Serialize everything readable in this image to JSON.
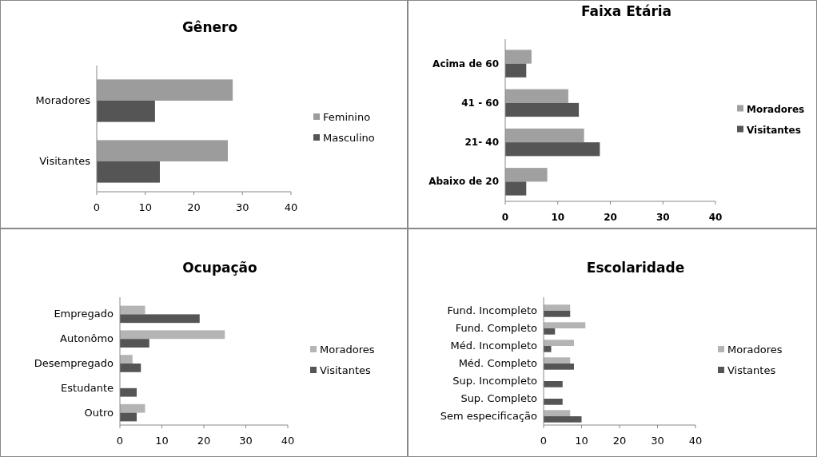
{
  "chart_data": [
    {
      "type": "bar",
      "orientation": "horizontal",
      "title": "Gênero",
      "categories": [
        "Moradores",
        "Visitantes"
      ],
      "series": [
        {
          "name": "Feminino",
          "color": "#9c9c9c",
          "values": [
            28,
            27
          ]
        },
        {
          "name": "Masculino",
          "color": "#555555",
          "values": [
            12,
            13
          ]
        }
      ],
      "xlim": [
        0,
        40
      ],
      "xticks": [
        0,
        10,
        20,
        30,
        40
      ],
      "grid": false,
      "legend": "right"
    },
    {
      "type": "bar",
      "orientation": "horizontal",
      "title": "Faixa Etária",
      "categories": [
        "Acima de 60",
        "41 - 60",
        "21- 40",
        "Abaixo de  20"
      ],
      "series": [
        {
          "name": "Moradores",
          "color": "#a0a0a0",
          "values": [
            5,
            12,
            15,
            8
          ]
        },
        {
          "name": "Visitantes",
          "color": "#555555",
          "values": [
            4,
            14,
            18,
            4
          ]
        }
      ],
      "xlim": [
        0,
        40
      ],
      "xticks": [
        0,
        10,
        20,
        30,
        40
      ],
      "grid": false,
      "legend": "right"
    },
    {
      "type": "bar",
      "orientation": "horizontal",
      "title": "Ocupação",
      "categories": [
        "Empregado",
        "Autonômo",
        "Desempregado",
        "Estudante",
        "Outro"
      ],
      "series": [
        {
          "name": "Moradores",
          "color": "#b4b4b4",
          "values": [
            6,
            25,
            3,
            0,
            6
          ]
        },
        {
          "name": "Visitantes",
          "color": "#555555",
          "values": [
            19,
            7,
            5,
            4,
            4
          ]
        }
      ],
      "xlim": [
        0,
        40
      ],
      "xticks": [
        0,
        10,
        20,
        30,
        40
      ],
      "grid": false,
      "legend": "right"
    },
    {
      "type": "bar",
      "orientation": "horizontal",
      "title": "Escolaridade",
      "categories": [
        "Fund. Incompleto",
        "Fund. Completo",
        "Méd. Incompleto",
        "Méd. Completo",
        "Sup. Incompleto",
        "Sup. Completo",
        "Sem especificação"
      ],
      "series": [
        {
          "name": "Moradores",
          "color": "#b4b4b4",
          "values": [
            7,
            11,
            8,
            7,
            0,
            0,
            7
          ]
        },
        {
          "name": "Vistantes",
          "color": "#555555",
          "values": [
            7,
            3,
            2,
            8,
            5,
            5,
            10
          ]
        }
      ],
      "xlim": [
        0,
        40
      ],
      "xticks": [
        0,
        10,
        20,
        30,
        40
      ],
      "grid": false,
      "legend": "right"
    }
  ]
}
